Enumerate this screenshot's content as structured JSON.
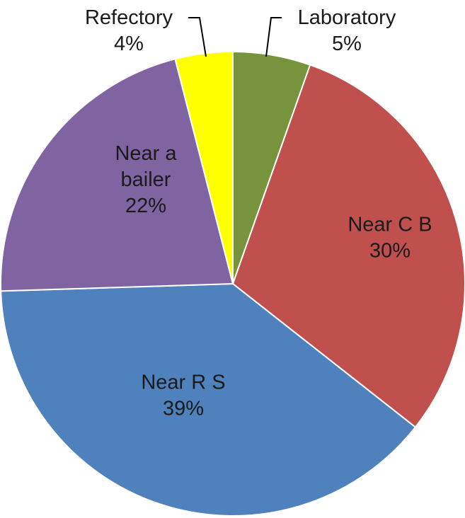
{
  "chart_data": {
    "type": "pie",
    "title": "",
    "slices": [
      {
        "label": "Laboratory",
        "line1": "Laboratory",
        "line2": "",
        "percent_text": "5%",
        "value": 5.4,
        "color": "#77933C"
      },
      {
        "label": "Near C B",
        "line1": "Near C B",
        "line2": "",
        "percent_text": "30%",
        "value": 30.2,
        "color": "#C0504D"
      },
      {
        "label": "Near R S",
        "line1": "Near R S",
        "line2": "",
        "percent_text": "39%",
        "value": 38.9,
        "color": "#4F81BD"
      },
      {
        "label": "Near a bailer",
        "line1": "Near a",
        "line2": "bailer",
        "percent_text": "22%",
        "value": 21.5,
        "color": "#8064A2"
      },
      {
        "label": "Refectory",
        "line1": "Refectory",
        "line2": "",
        "percent_text": "4%",
        "value": 4.0,
        "color": "#FFFF00"
      }
    ],
    "start_angle": "12 o'clock",
    "direction": "clockwise",
    "legend": "none",
    "data_labels": "category name and percentage",
    "grid": false
  }
}
